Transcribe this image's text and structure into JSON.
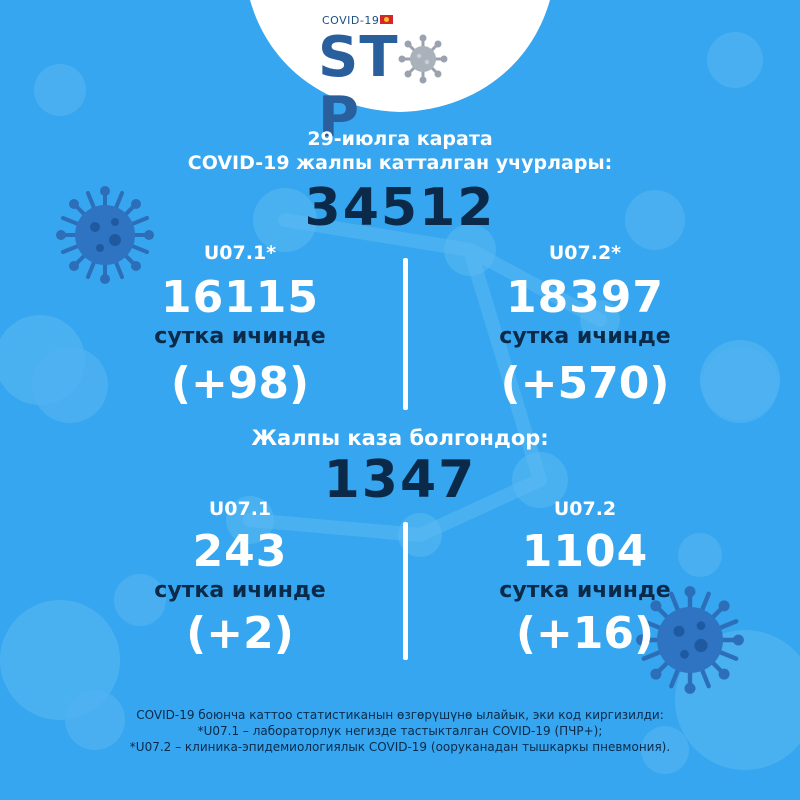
{
  "logo": {
    "subtitle": "COVID-19",
    "word_start": "ST",
    "word_end": "P",
    "icon": "virus-icon",
    "flag_icon": "kyrgyz-flag-icon"
  },
  "header": {
    "date_line": "29-июлга карата",
    "caption": "COVID-19 жалпы катталган учурлары:",
    "total_cases": "34512"
  },
  "cases": {
    "left": {
      "code": "U07.1*",
      "total": "16115",
      "daily_label": "сутка ичинде",
      "daily_delta": "(+98)"
    },
    "right": {
      "code": "U07.2*",
      "total": "18397",
      "daily_label": "сутка ичинде",
      "daily_delta": "(+570)"
    }
  },
  "deaths": {
    "caption": "Жалпы каза болгондор:",
    "total": "1347",
    "left": {
      "code": "U07.1",
      "total": "243",
      "daily_label": "сутка ичинде",
      "daily_delta": "(+2)"
    },
    "right": {
      "code": "U07.2",
      "total": "1104",
      "daily_label": "сутка ичинде",
      "daily_delta": "(+16)"
    }
  },
  "footnotes": {
    "line1": "COVID-19 боюнча каттоо статистиканын өзгөрүшүнө ылайык, эки код киргизилди:",
    "line2": "*U07.1 – лабораторлук негизде тастыкталган COVID-19 (ПЧР+);",
    "line3": "*U07.2 – клиника-эпидемиологиялык COVID-19 (ооруканадан тышкаркы пневмония)."
  },
  "colors": {
    "background": "#35a6ef",
    "text_dark": "#0b2a4a",
    "text_light": "#ffffff",
    "logo_blue": "#2a5f9e",
    "flag_red": "#d7262b"
  }
}
